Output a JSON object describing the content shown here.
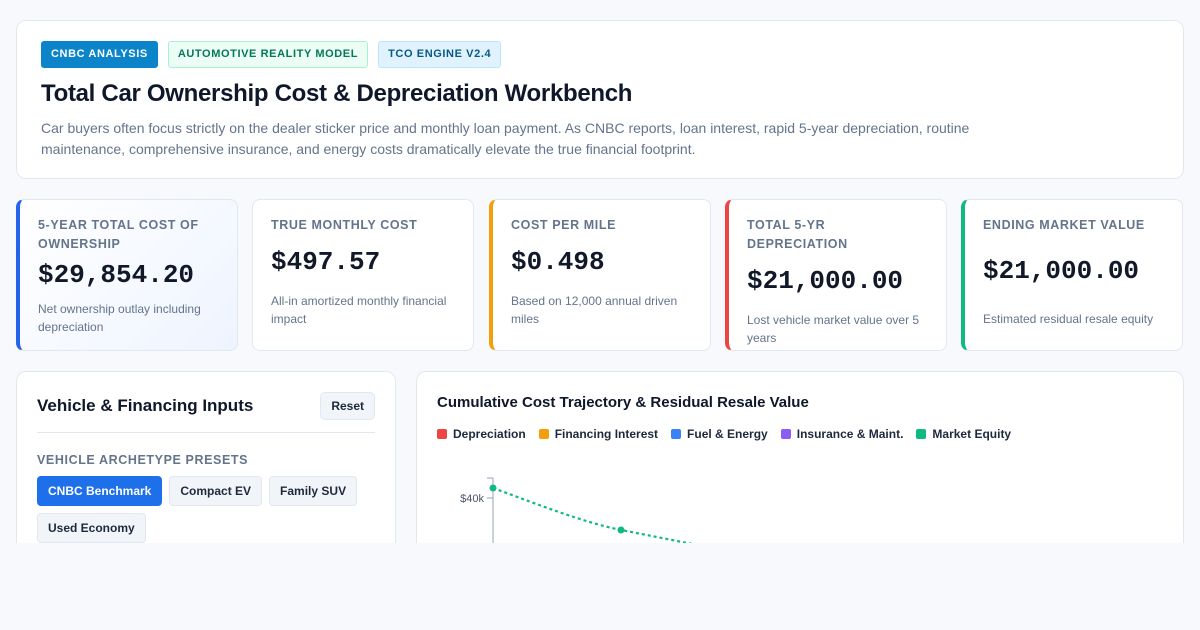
{
  "header": {
    "badges": [
      "CNBC ANALYSIS",
      "AUTOMOTIVE REALITY MODEL",
      "TCO ENGINE V2.4"
    ],
    "title": "Total Car Ownership Cost & Depreciation Workbench",
    "description": "Car buyers often focus strictly on the dealer sticker price and monthly loan payment. As CNBC reports, loan interest, rapid 5-year depreciation, routine maintenance, comprehensive insurance, and energy costs dramatically elevate the true financial footprint."
  },
  "kpis": [
    {
      "label": "5-YEAR TOTAL COST OF OWNERSHIP",
      "value": "$29,854.20",
      "sub": "Net ownership outlay including depreciation",
      "accent": "#2563eb"
    },
    {
      "label": "TRUE MONTHLY COST",
      "value": "$497.57",
      "sub": "All-in amortized monthly financial impact",
      "accent": ""
    },
    {
      "label": "COST PER MILE",
      "value": "$0.498",
      "sub": "Based on 12,000 annual driven miles",
      "accent": "#f59e0b"
    },
    {
      "label": "TOTAL 5-YR DEPRECIATION",
      "value": "$21,000.00",
      "sub": "Lost vehicle market value over 5 years",
      "accent": "#ef4444"
    },
    {
      "label": "ENDING MARKET VALUE",
      "value": "$21,000.00",
      "sub": "Estimated residual resale equity",
      "accent": "#10b981"
    }
  ],
  "inputs": {
    "title": "Vehicle & Financing Inputs",
    "reset_label": "Reset",
    "presets_label": "VEHICLE ARCHETYPE PRESETS",
    "presets": [
      {
        "label": "CNBC Benchmark",
        "active": true
      },
      {
        "label": "Compact EV",
        "active": false
      },
      {
        "label": "Family SUV",
        "active": false
      },
      {
        "label": "Used Economy",
        "active": false
      }
    ]
  },
  "chart": {
    "title": "Cumulative Cost Trajectory & Residual Resale Value",
    "legend": [
      {
        "name": "Depreciation",
        "color": "#ef4444"
      },
      {
        "name": "Financing Interest",
        "color": "#f59e0b"
      },
      {
        "name": "Fuel & Energy",
        "color": "#3b82f6"
      },
      {
        "name": "Insurance & Maint.",
        "color": "#8b5cf6"
      },
      {
        "name": "Market Equity",
        "color": "#10b981"
      }
    ]
  },
  "chart_data": {
    "type": "line",
    "y_tick_labels": [
      "$40k"
    ],
    "series": [
      {
        "name": "Market Equity",
        "color": "#10b981",
        "style": "dotted",
        "x": [
          0,
          1
        ],
        "values": [
          42000,
          34000
        ]
      }
    ]
  }
}
